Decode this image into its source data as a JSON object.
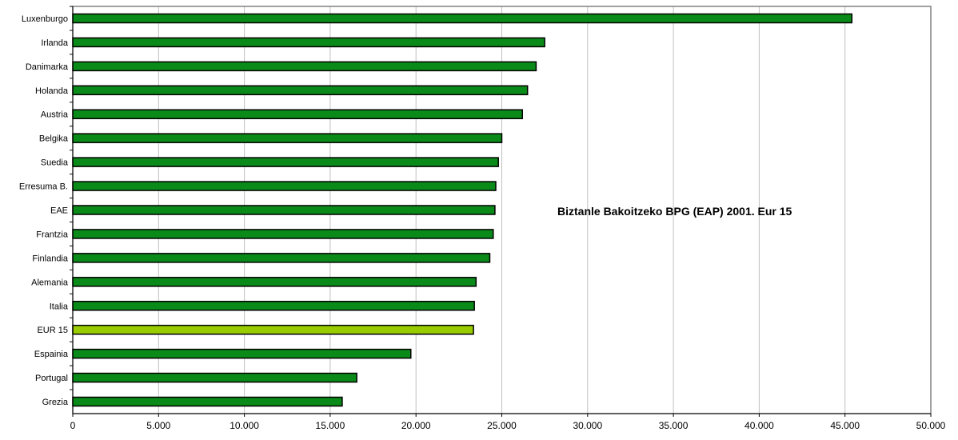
{
  "chart_data": {
    "type": "bar",
    "orientation": "horizontal",
    "title": "Biztanle Bakoitzeko BPG (EAP) 2001. Eur 15",
    "xlabel": "",
    "ylabel": "",
    "xlim": [
      0,
      50000
    ],
    "ticks": [
      "0",
      "5.000",
      "10.000",
      "15.000",
      "20.000",
      "25.000",
      "30.000",
      "35.000",
      "40.000",
      "45.000",
      "50.000"
    ],
    "grid": "vertical",
    "legend": "none",
    "categories": [
      "Luxenburgo",
      "Irlanda",
      "Danimarka",
      "Holanda",
      "Austria",
      "Belgika",
      "Suedia",
      "Erresuma B.",
      "EAE",
      "Frantzia",
      "Finlandia",
      "Alemania",
      "Italia",
      "EUR 15",
      "Espainia",
      "Portugal",
      "Grezia"
    ],
    "values": [
      45400,
      27500,
      27000,
      26500,
      26200,
      25000,
      24800,
      24650,
      24600,
      24500,
      24300,
      23500,
      23400,
      23350,
      19700,
      16550,
      15700
    ],
    "highlight": "EUR 15",
    "colors": {
      "bar": "#0a8a18",
      "highlight": "#99cc00",
      "border": "#000000",
      "grid": "#c0c0c0",
      "frame": "#808080"
    }
  }
}
